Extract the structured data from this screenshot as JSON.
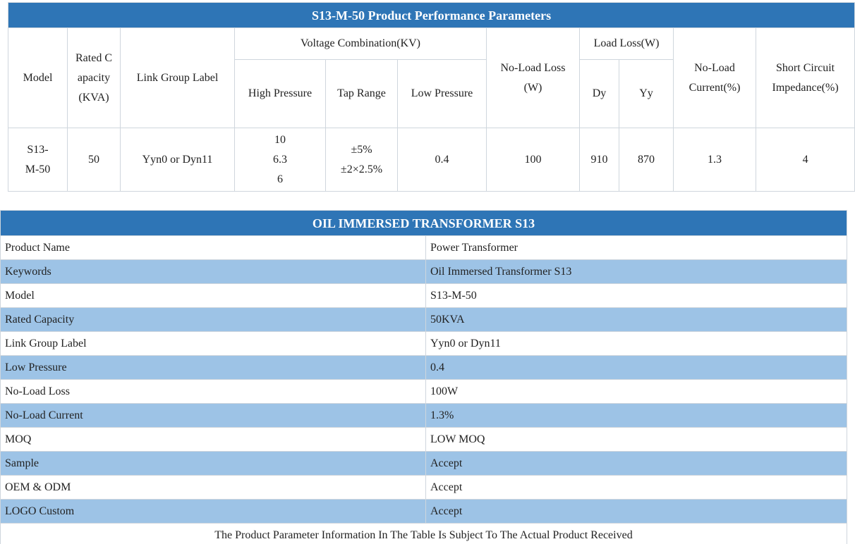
{
  "spec_table": {
    "title": "S13-M-50 Product Performance Parameters",
    "headers": {
      "model": "Model",
      "rated_capacity": "Rated Capacity (KVA)",
      "link_group": "Link Group Label",
      "voltage": "Voltage Combination(KV)",
      "high_pressure": "High Pressure",
      "tap_range": "Tap Range",
      "low_pressure": "Low Pressure",
      "no_load_loss": "No-Load Loss (W)",
      "load_loss": "Load Loss(W)",
      "dy": "Dy",
      "yy": "Yy",
      "no_load_current": "No-Load Current(%)",
      "impedance": "Short Circuit Impedance(%)"
    },
    "row": {
      "model": "S13-M-50",
      "rated_capacity": "50",
      "link_group": "Yyn0 or Dyn11",
      "high_pressure": [
        "10",
        "6.3",
        "6"
      ],
      "tap_range": [
        "±5%",
        "±2×2.5%"
      ],
      "low_pressure": "0.4",
      "no_load_loss": "100",
      "dy": "910",
      "yy": "870",
      "no_load_current": "1.3",
      "impedance": "4"
    }
  },
  "info_table": {
    "title": "OIL IMMERSED TRANSFORMER S13",
    "rows": [
      [
        "Product Name",
        "Power Transformer"
      ],
      [
        "Keywords",
        "Oil Immersed Transformer S13"
      ],
      [
        "Model",
        "S13-M-50"
      ],
      [
        "Rated Capacity",
        "50KVA"
      ],
      [
        "Link Group Label",
        "Yyn0 or Dyn11"
      ],
      [
        "Low Pressure",
        "0.4"
      ],
      [
        "No-Load Loss",
        "100W"
      ],
      [
        "No-Load Current",
        "1.3%"
      ],
      [
        "MOQ",
        "LOW MOQ"
      ],
      [
        "Sample",
        "Accept"
      ],
      [
        "OEM & ODM",
        "Accept"
      ],
      [
        "LOGO Custom",
        "Accept"
      ]
    ],
    "footer": "The Product Parameter Information In The Table Is Subject To The Actual Product Received"
  }
}
